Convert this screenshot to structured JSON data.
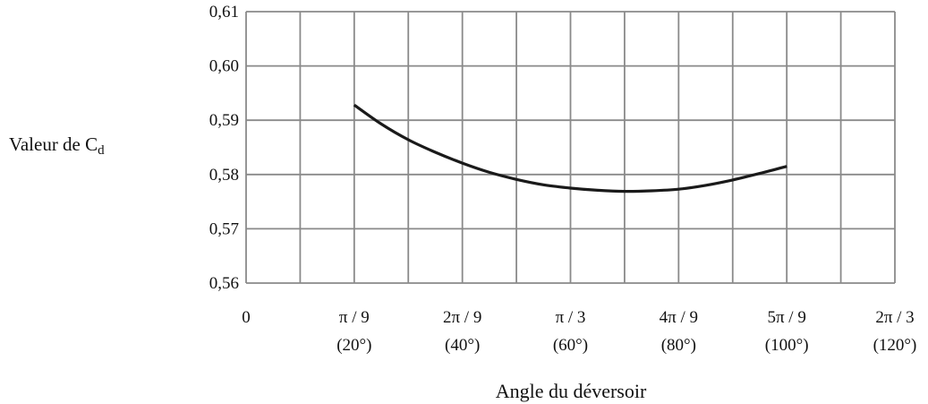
{
  "chart_data": {
    "type": "line",
    "title": "",
    "xlabel": "Angle du déversoir",
    "ylabel": {
      "main": "Valeur de C",
      "sub": "d"
    },
    "xlim": [
      0,
      120
    ],
    "ylim": [
      0.56,
      0.61
    ],
    "grid": true,
    "x_ticks": [
      {
        "value": 0,
        "label": "0",
        "sublabel": ""
      },
      {
        "value": 20,
        "label": "π / 9",
        "sublabel": "(20°)"
      },
      {
        "value": 40,
        "label": "2π / 9",
        "sublabel": "(40°)"
      },
      {
        "value": 60,
        "label": "π / 3",
        "sublabel": "(60°)"
      },
      {
        "value": 80,
        "label": "4π / 9",
        "sublabel": "(80°)"
      },
      {
        "value": 100,
        "label": "5π / 9",
        "sublabel": "(100°)"
      },
      {
        "value": 120,
        "label": "2π / 3",
        "sublabel": "(120°)"
      }
    ],
    "y_ticks": [
      {
        "value": 0.56,
        "label": "0,56"
      },
      {
        "value": 0.57,
        "label": "0,57"
      },
      {
        "value": 0.58,
        "label": "0,58"
      },
      {
        "value": 0.59,
        "label": "0,59"
      },
      {
        "value": 0.6,
        "label": "0,60"
      },
      {
        "value": 0.61,
        "label": "0,61"
      }
    ],
    "series": [
      {
        "x": [
          20,
          25,
          30,
          35,
          40,
          45,
          50,
          55,
          60,
          65,
          70,
          75,
          80,
          85,
          90,
          95,
          100
        ],
        "y": [
          0.5928,
          0.5893,
          0.5864,
          0.5841,
          0.5821,
          0.5804,
          0.5791,
          0.5781,
          0.5775,
          0.5771,
          0.5769,
          0.577,
          0.5773,
          0.578,
          0.579,
          0.5802,
          0.5815
        ],
        "color": "#1a1a1a"
      }
    ]
  }
}
